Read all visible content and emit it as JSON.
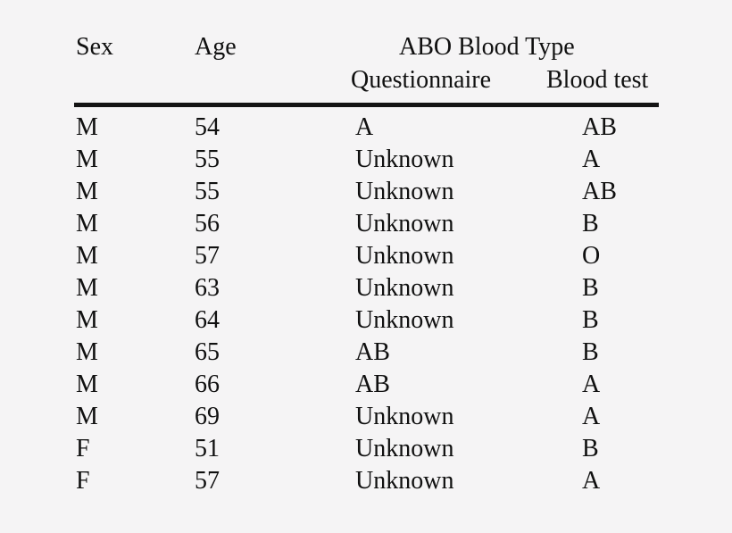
{
  "page": {
    "background_color": "#f5f4f5",
    "text_color": "#101010",
    "rule_color": "#131313"
  },
  "table": {
    "headers": {
      "sex": "Sex",
      "age": "Age",
      "group": "ABO Blood Type",
      "questionnaire": "Questionnaire",
      "blood_test": "Blood test"
    },
    "rows": [
      {
        "sex": "M",
        "age": "54",
        "questionnaire": "A",
        "blood_test": "AB"
      },
      {
        "sex": "M",
        "age": "55",
        "questionnaire": "Unknown",
        "blood_test": "A"
      },
      {
        "sex": "M",
        "age": "55",
        "questionnaire": "Unknown",
        "blood_test": "AB"
      },
      {
        "sex": "M",
        "age": "56",
        "questionnaire": "Unknown",
        "blood_test": "B"
      },
      {
        "sex": "M",
        "age": "57",
        "questionnaire": "Unknown",
        "blood_test": "O"
      },
      {
        "sex": "M",
        "age": "63",
        "questionnaire": "Unknown",
        "blood_test": "B"
      },
      {
        "sex": "M",
        "age": "64",
        "questionnaire": "Unknown",
        "blood_test": "B"
      },
      {
        "sex": "M",
        "age": "65",
        "questionnaire": "AB",
        "blood_test": "B"
      },
      {
        "sex": "M",
        "age": "66",
        "questionnaire": "AB",
        "blood_test": "A"
      },
      {
        "sex": "M",
        "age": "69",
        "questionnaire": "Unknown",
        "blood_test": "A"
      },
      {
        "sex": "F",
        "age": "51",
        "questionnaire": "Unknown",
        "blood_test": "B"
      },
      {
        "sex": "F",
        "age": "57",
        "questionnaire": "Unknown",
        "blood_test": "A"
      }
    ]
  }
}
